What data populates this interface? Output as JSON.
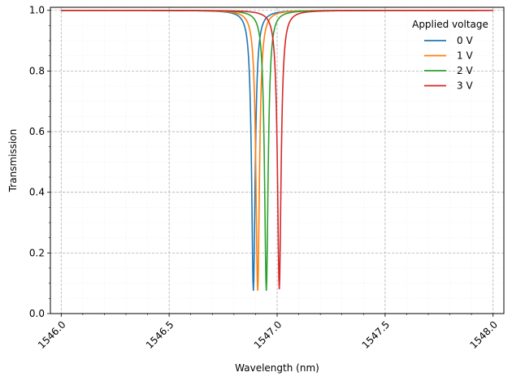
{
  "chart_data": {
    "type": "line",
    "title": "",
    "xlabel": "Wavelength (nm)",
    "ylabel": "Transmission",
    "xlim": [
      1545.95,
      1548.05
    ],
    "ylim": [
      0.0,
      1.01
    ],
    "xticks": [
      1546.0,
      1546.5,
      1547.0,
      1547.5,
      1548.0
    ],
    "xtick_labels": [
      "1546.0",
      "1546.5",
      "1547.0",
      "1547.5",
      "1548.0"
    ],
    "yticks": [
      0.0,
      0.2,
      0.4,
      0.6,
      0.8,
      1.0
    ],
    "ytick_labels": [
      "0.0",
      "0.2",
      "0.4",
      "0.6",
      "0.8",
      "1.0"
    ],
    "grid": true,
    "legend": {
      "title": "Applied voltage",
      "location": "top-right"
    },
    "x_range": [
      1546.0,
      1548.0
    ],
    "series": [
      {
        "name": "0 V",
        "color": "#1f77b4",
        "resonance_nm": 1546.89,
        "min_transmission": 0.075,
        "fwhm_nm": 0.02
      },
      {
        "name": "1 V",
        "color": "#ff7f0e",
        "resonance_nm": 1546.91,
        "min_transmission": 0.075,
        "fwhm_nm": 0.02
      },
      {
        "name": "2 V",
        "color": "#2ca02c",
        "resonance_nm": 1546.95,
        "min_transmission": 0.075,
        "fwhm_nm": 0.02
      },
      {
        "name": "3 V",
        "color": "#d62728",
        "resonance_nm": 1547.01,
        "min_transmission": 0.08,
        "fwhm_nm": 0.02
      }
    ]
  }
}
